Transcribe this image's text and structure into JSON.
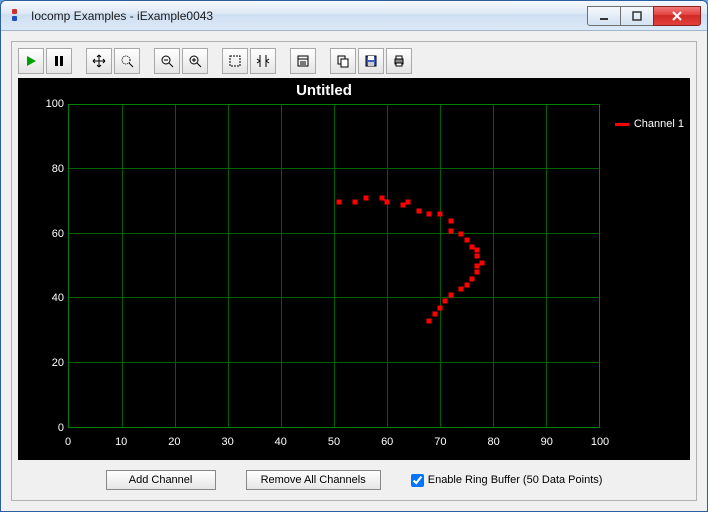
{
  "window": {
    "title": "Iocomp Examples - iExample0043"
  },
  "toolbar": {
    "play": "play-icon",
    "pause": "pause-icon",
    "pan": "pan-icon",
    "zoom_select": "zoom-box-icon",
    "zoom_out": "zoom-out-icon",
    "zoom_in": "zoom-in-icon",
    "select": "select-icon",
    "cursor": "cursor-icon",
    "props": "properties-icon",
    "copy": "copy-icon",
    "save": "save-icon",
    "print": "print-icon"
  },
  "chart": {
    "type": "scatter",
    "title": "Untitled",
    "title_fontsize": 15,
    "background_color": "#000000",
    "grid_color": "#006000",
    "axis_color": "#008000",
    "tick_color": "#ffffff",
    "xlim": [
      0,
      100
    ],
    "ylim": [
      0,
      100
    ],
    "xtick_step": 10,
    "ytick_step": 20,
    "legend_position": "right-top",
    "series": [
      {
        "name": "Channel 1",
        "color": "#ff0000",
        "marker": "square",
        "marker_size": 5,
        "points": [
          [
            51,
            70
          ],
          [
            54,
            70
          ],
          [
            56,
            71
          ],
          [
            59,
            71
          ],
          [
            60,
            70
          ],
          [
            63,
            69
          ],
          [
            64,
            70
          ],
          [
            66,
            67
          ],
          [
            68,
            66
          ],
          [
            70,
            66
          ],
          [
            72,
            64
          ],
          [
            72,
            61
          ],
          [
            74,
            60
          ],
          [
            75,
            58
          ],
          [
            76,
            56
          ],
          [
            77,
            55
          ],
          [
            77,
            53
          ],
          [
            78,
            51
          ],
          [
            77,
            50
          ],
          [
            77,
            48
          ],
          [
            76,
            46
          ],
          [
            75,
            44
          ],
          [
            74,
            43
          ],
          [
            72,
            41
          ],
          [
            71,
            39
          ],
          [
            70,
            37
          ],
          [
            69,
            35
          ],
          [
            68,
            33
          ]
        ]
      }
    ]
  },
  "controls": {
    "add_channel_label": "Add Channel",
    "remove_all_label": "Remove All Channels",
    "ring_buffer_label": "Enable Ring Buffer (50 Data Points)",
    "ring_buffer_checked": true
  }
}
